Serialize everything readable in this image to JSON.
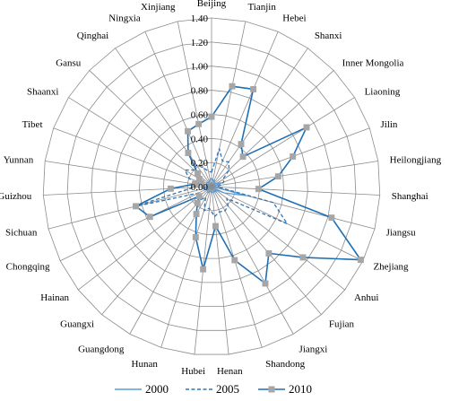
{
  "chart_data": {
    "type": "radar",
    "categories": [
      "Beijing",
      "Tianjin",
      "Hebei",
      "Shanxi",
      "Inner Mongolia",
      "Liaoning",
      "Jilin",
      "Heilongjiang",
      "Shanghai",
      "Jiangsu",
      "Zhejiang",
      "Anhui",
      "Fujian",
      "Jiangxi",
      "Shandong",
      "Henan",
      "Hubei",
      "Hunan",
      "Guangdong",
      "Guangxi",
      "Hainan",
      "Chongqing",
      "Sichuan",
      "Guizhou",
      "Yunnan",
      "Tibet",
      "Shaanxi",
      "Gansu",
      "Qinghai",
      "Ningxia",
      "Xinjiang"
    ],
    "rlim": [
      0,
      1.4
    ],
    "rticks": [
      "0.00",
      "0.20",
      "0.40",
      "0.60",
      "0.80",
      "1.00",
      "1.20",
      "1.40"
    ],
    "series": [
      {
        "name": "2000",
        "style": "solid",
        "marker": "none",
        "color": "#5b9bd5",
        "values": [
          0.07,
          0.05,
          0.06,
          0.04,
          0.03,
          0.05,
          0.09,
          0.03,
          0.02,
          0.3,
          0.12,
          0.04,
          0.06,
          0.04,
          0.05,
          0.05,
          0.04,
          0.04,
          0.06,
          0.05,
          0.03,
          0.05,
          0.07,
          0.04,
          0.05,
          0.03,
          0.05,
          0.05,
          0.04,
          0.05,
          0.06
        ]
      },
      {
        "name": "2005",
        "style": "dashed",
        "marker": "none",
        "color": "#2f75b5",
        "values": [
          0.12,
          0.32,
          0.23,
          0.25,
          0.2,
          0.11,
          0.11,
          0.07,
          0.05,
          0.53,
          0.7,
          0.16,
          0.21,
          0.23,
          0.22,
          0.25,
          0.18,
          0.21,
          0.1,
          0.15,
          0.13,
          0.12,
          0.68,
          0.15,
          0.12,
          0.2,
          0.26,
          0.2,
          0.22,
          0.17,
          0.13
        ]
      },
      {
        "name": "2010",
        "style": "solid",
        "marker": "square",
        "color": "#1f6fb4",
        "values": [
          0.58,
          0.85,
          0.88,
          0.43,
          0.36,
          0.93,
          0.72,
          0.56,
          0.39,
          1.03,
          1.38,
          0.96,
          0.73,
          0.92,
          0.64,
          0.33,
          0.69,
          0.44,
          0.26,
          0.18,
          0.13,
          0.57,
          0.65,
          0.34,
          0.14,
          0.09,
          0.12,
          0.16,
          0.34,
          0.5,
          0.53
        ]
      }
    ],
    "grid": true,
    "legend_position": "bottom-center"
  }
}
